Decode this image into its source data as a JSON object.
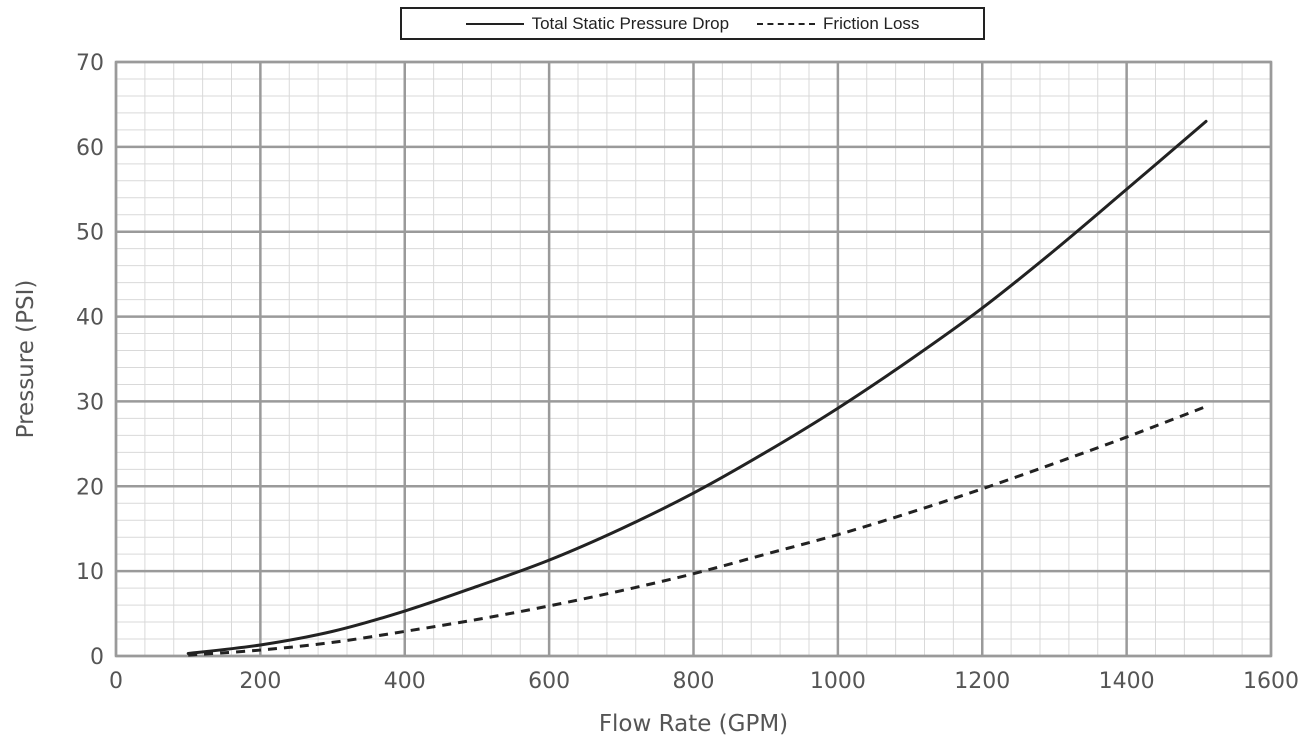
{
  "chart_data": {
    "type": "line",
    "title": "",
    "xlabel": "Flow Rate (GPM)",
    "ylabel": "Pressure (PSI)",
    "xlim": [
      0,
      1600
    ],
    "ylim": [
      0,
      70
    ],
    "x_major_step": 200,
    "y_major_step": 10,
    "x_minor_step": 40,
    "y_minor_step": 2,
    "grid": true,
    "legend_position": "top-center",
    "x_ticks": [
      "0",
      "200",
      "400",
      "600",
      "800",
      "1000",
      "1200",
      "1400",
      "1600"
    ],
    "y_ticks": [
      "0",
      "10",
      "20",
      "30",
      "40",
      "50",
      "60",
      "70"
    ],
    "series": [
      {
        "name": "Total Static Pressure Drop",
        "style": "solid",
        "color": "#222222",
        "points": [
          [
            100,
            0.3
          ],
          [
            200,
            1.3
          ],
          [
            300,
            2.9
          ],
          [
            400,
            5.3
          ],
          [
            500,
            8.2
          ],
          [
            600,
            11.3
          ],
          [
            700,
            15.0
          ],
          [
            800,
            19.2
          ],
          [
            900,
            24.0
          ],
          [
            1000,
            29.2
          ],
          [
            1100,
            34.9
          ],
          [
            1200,
            41.0
          ],
          [
            1300,
            47.8
          ],
          [
            1400,
            55.0
          ],
          [
            1510,
            63.0
          ]
        ]
      },
      {
        "name": "Friction Loss",
        "style": "dashed",
        "color": "#222222",
        "points": [
          [
            100,
            0.1
          ],
          [
            200,
            0.7
          ],
          [
            300,
            1.6
          ],
          [
            400,
            2.9
          ],
          [
            500,
            4.3
          ],
          [
            600,
            5.9
          ],
          [
            700,
            7.7
          ],
          [
            800,
            9.7
          ],
          [
            900,
            12.0
          ],
          [
            1000,
            14.3
          ],
          [
            1100,
            16.9
          ],
          [
            1200,
            19.7
          ],
          [
            1300,
            22.7
          ],
          [
            1400,
            25.8
          ],
          [
            1510,
            29.4
          ]
        ]
      }
    ]
  },
  "colors": {
    "major_grid": "#9a9a9a",
    "minor_grid": "#d9d9d9",
    "frame": "#9a9a9a",
    "line": "#222222",
    "text": "#555555"
  }
}
